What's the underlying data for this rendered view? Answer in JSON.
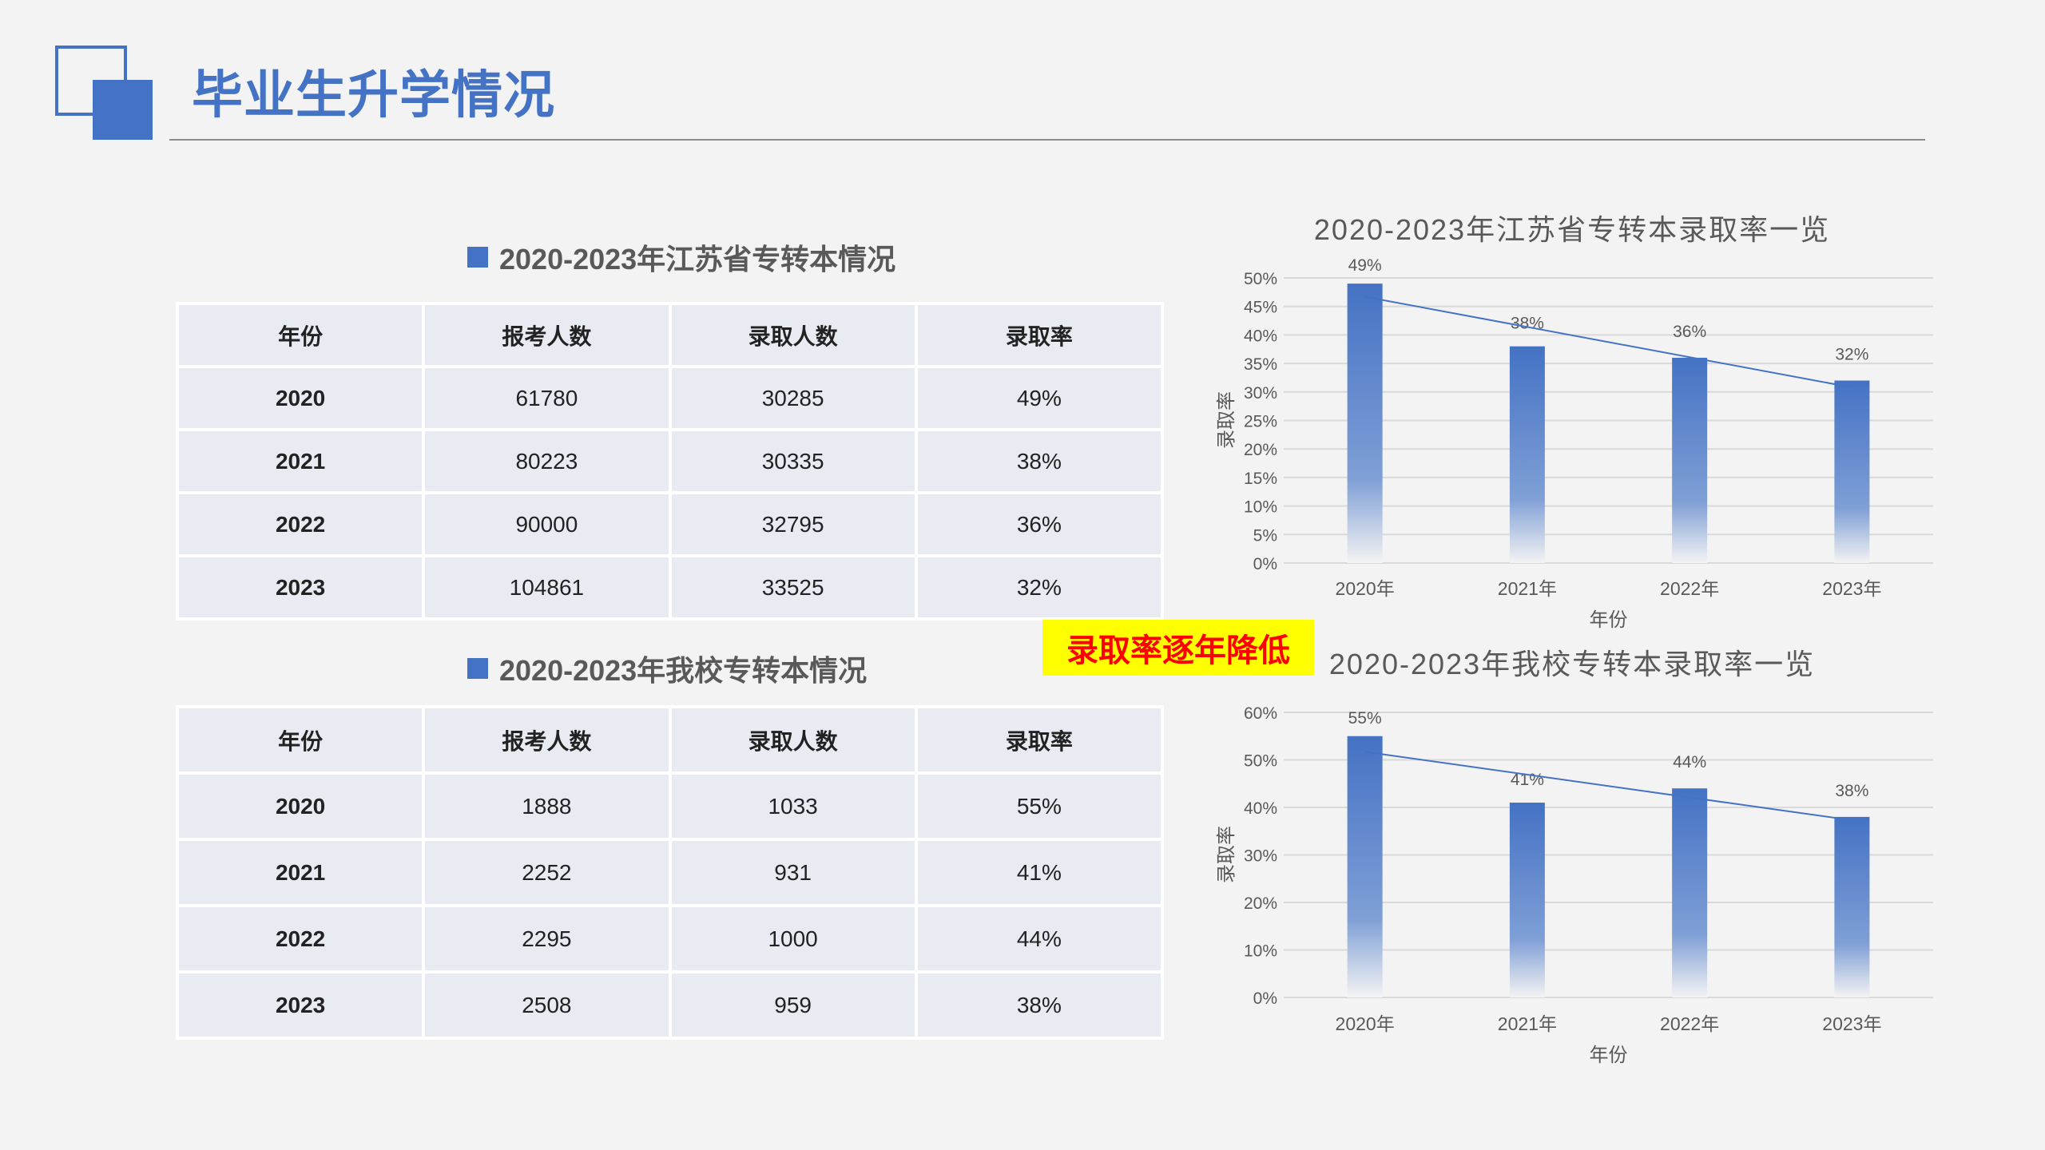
{
  "header": {
    "title": "毕业生升学情况"
  },
  "callout": "录取率逐年降低",
  "tables": [
    {
      "heading": "2020-2023年江苏省专转本情况",
      "columns": [
        "年份",
        "报考人数",
        "录取人数",
        "录取率"
      ],
      "rows": [
        [
          "2020",
          "61780",
          "30285",
          "49%"
        ],
        [
          "2021",
          "80223",
          "30335",
          "38%"
        ],
        [
          "2022",
          "90000",
          "32795",
          "36%"
        ],
        [
          "2023",
          "104861",
          "33525",
          "32%"
        ]
      ]
    },
    {
      "heading": "2020-2023年我校专转本情况",
      "columns": [
        "年份",
        "报考人数",
        "录取人数",
        "录取率"
      ],
      "rows": [
        [
          "2020",
          "1888",
          "1033",
          "55%"
        ],
        [
          "2021",
          "2252",
          "931",
          "41%"
        ],
        [
          "2022",
          "2295",
          "1000",
          "44%"
        ],
        [
          "2023",
          "2508",
          "959",
          "38%"
        ]
      ]
    }
  ],
  "colors": {
    "accent": "#4472c4",
    "callout_bg": "#ffff00",
    "callout_text": "#ff0000"
  },
  "chart_data": [
    {
      "type": "bar",
      "title": "2020-2023年江苏省专转本录取率一览",
      "xlabel": "年份",
      "ylabel": "录取率",
      "categories": [
        "2020年",
        "2021年",
        "2022年",
        "2023年"
      ],
      "values": [
        49,
        38,
        36,
        32
      ],
      "data_labels": [
        "49%",
        "38%",
        "36%",
        "32%"
      ],
      "ylim": [
        0,
        50
      ],
      "ystep": 5,
      "yticks": [
        "0%",
        "5%",
        "10%",
        "15%",
        "20%",
        "25%",
        "30%",
        "35%",
        "40%",
        "45%",
        "50%"
      ],
      "trendline": "linear",
      "grid": true
    },
    {
      "type": "bar",
      "title": "2020-2023年我校专转本录取率一览",
      "xlabel": "年份",
      "ylabel": "录取率",
      "categories": [
        "2020年",
        "2021年",
        "2022年",
        "2023年"
      ],
      "values": [
        55,
        41,
        44,
        38
      ],
      "data_labels": [
        "55%",
        "41%",
        "44%",
        "38%"
      ],
      "ylim": [
        0,
        60
      ],
      "ystep": 10,
      "yticks": [
        "0%",
        "10%",
        "20%",
        "30%",
        "40%",
        "50%",
        "60%"
      ],
      "trendline": "linear",
      "grid": true
    }
  ]
}
